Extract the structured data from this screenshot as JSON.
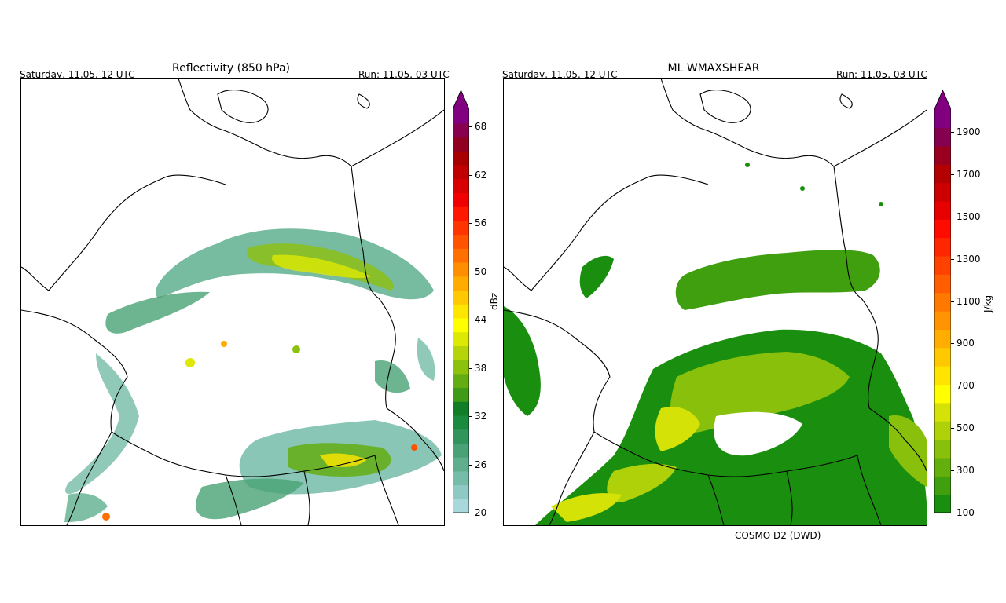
{
  "left_panel": {
    "date_label": "Saturday, 11.05. 12 UTC",
    "title": "Reflectivity (850 hPa)",
    "run_label": "Run: 11.05. 03 UTC",
    "colorbar": {
      "unit": "dBz",
      "ticks": [
        "20",
        "26",
        "32",
        "38",
        "44",
        "50",
        "56",
        "62",
        "68"
      ],
      "colors": [
        "#a8d8dc",
        "#8ec9c4",
        "#76bca8",
        "#5faf8f",
        "#48a276",
        "#2f955c",
        "#1a8a3f",
        "#0f7e26",
        "#3f9a18",
        "#63ad12",
        "#8cc10e",
        "#b5d50a",
        "#dde905",
        "#ffff00",
        "#ffe600",
        "#ffc800",
        "#ffab00",
        "#ff8e00",
        "#ff7000",
        "#ff5300",
        "#ff3500",
        "#ff1800",
        "#f00000",
        "#d80000",
        "#c00000",
        "#a80000",
        "#900020",
        "#880050",
        "#800080"
      ]
    }
  },
  "right_panel": {
    "date_label": "Saturday, 11.05. 12 UTC",
    "title": "ML WMAXSHEAR",
    "run_label": "Run: 11.05. 03 UTC",
    "credit": "COSMO D2 (DWD)",
    "colorbar": {
      "unit": "J/kg",
      "ticks": [
        "100",
        "300",
        "500",
        "700",
        "900",
        "1100",
        "1300",
        "1500",
        "1700",
        "1900"
      ],
      "colors": [
        "#1a8f0f",
        "#3f9f0e",
        "#63af0c",
        "#88c00b",
        "#aed10a",
        "#d4e208",
        "#ffff00",
        "#ffe400",
        "#ffc900",
        "#ffae00",
        "#ff9300",
        "#ff7800",
        "#ff5d00",
        "#ff4200",
        "#ff2700",
        "#ff0c00",
        "#e60000",
        "#cc0000",
        "#b30000",
        "#990020",
        "#860050",
        "#800080"
      ]
    }
  }
}
